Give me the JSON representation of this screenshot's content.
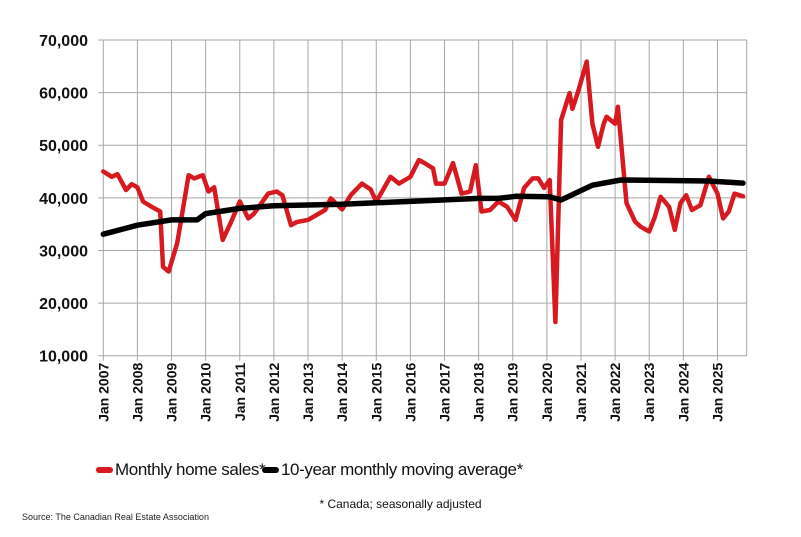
{
  "chart_data": {
    "type": "line",
    "title": "",
    "xlabel": "",
    "ylabel": "",
    "ylim": [
      10000,
      70000
    ],
    "yticks": [
      "10,000",
      "20,000",
      "30,000",
      "40,000",
      "50,000",
      "60,000",
      "70,000"
    ],
    "ytick_values": [
      10000,
      20000,
      30000,
      40000,
      50000,
      60000,
      70000
    ],
    "xlim": [
      "2007-01",
      "2025-11"
    ],
    "xticks": [
      "Jan 2007",
      "Jan 2008",
      "Jan 2009",
      "Jan 2010",
      "Jan 2011",
      "Jan 2012",
      "Jan 2013",
      "Jan 2014",
      "Jan 2015",
      "Jan 2016",
      "Jan 2017",
      "Jan 2018",
      "Jan 2019",
      "Jan 2020",
      "Jan 2021",
      "Jan 2022",
      "Jan 2023",
      "Jan 2024",
      "Jan 2025"
    ],
    "grid": true,
    "legend_position": "bottom",
    "series": [
      {
        "name": "Monthly home sales*",
        "color": "#d71920",
        "points": [
          [
            "2007-01",
            45000
          ],
          [
            "2007-04",
            44000
          ],
          [
            "2007-06",
            44500
          ],
          [
            "2007-09",
            41500
          ],
          [
            "2007-11",
            42600
          ],
          [
            "2008-01",
            42000
          ],
          [
            "2008-03",
            39300
          ],
          [
            "2008-06",
            38300
          ],
          [
            "2008-09",
            37400
          ],
          [
            "2008-10",
            26900
          ],
          [
            "2008-12",
            26000
          ],
          [
            "2009-03",
            31400
          ],
          [
            "2009-07",
            44300
          ],
          [
            "2009-09",
            43700
          ],
          [
            "2009-12",
            44300
          ],
          [
            "2010-02",
            41200
          ],
          [
            "2010-04",
            42000
          ],
          [
            "2010-07",
            32000
          ],
          [
            "2010-10",
            35500
          ],
          [
            "2011-01",
            39300
          ],
          [
            "2011-04",
            36100
          ],
          [
            "2011-06",
            37000
          ],
          [
            "2011-11",
            40800
          ],
          [
            "2012-02",
            41200
          ],
          [
            "2012-04",
            40500
          ],
          [
            "2012-07",
            34800
          ],
          [
            "2012-09",
            35400
          ],
          [
            "2013-01",
            35800
          ],
          [
            "2013-07",
            37700
          ],
          [
            "2013-09",
            39900
          ],
          [
            "2014-01",
            37800
          ],
          [
            "2014-04",
            40500
          ],
          [
            "2014-08",
            42700
          ],
          [
            "2014-11",
            41600
          ],
          [
            "2015-01",
            39300
          ],
          [
            "2015-06",
            44000
          ],
          [
            "2015-09",
            42700
          ],
          [
            "2016-01",
            44000
          ],
          [
            "2016-04",
            47200
          ],
          [
            "2016-06",
            46600
          ],
          [
            "2016-09",
            45600
          ],
          [
            "2016-10",
            42700
          ],
          [
            "2017-01",
            42700
          ],
          [
            "2017-04",
            46600
          ],
          [
            "2017-07",
            40800
          ],
          [
            "2017-10",
            41200
          ],
          [
            "2017-12",
            46200
          ],
          [
            "2018-02",
            37400
          ],
          [
            "2018-05",
            37700
          ],
          [
            "2018-08",
            39300
          ],
          [
            "2018-11",
            38300
          ],
          [
            "2019-02",
            35800
          ],
          [
            "2019-05",
            41900
          ],
          [
            "2019-08",
            43700
          ],
          [
            "2019-10",
            43700
          ],
          [
            "2019-12",
            41900
          ],
          [
            "2020-02",
            43400
          ],
          [
            "2020-04",
            16400
          ],
          [
            "2020-06",
            54800
          ],
          [
            "2020-09",
            59900
          ],
          [
            "2020-10",
            56900
          ],
          [
            "2020-12",
            60200
          ],
          [
            "2021-03",
            65900
          ],
          [
            "2021-05",
            54100
          ],
          [
            "2021-07",
            49700
          ],
          [
            "2021-09",
            54100
          ],
          [
            "2021-10",
            55400
          ],
          [
            "2022-01",
            54100
          ],
          [
            "2022-02",
            57300
          ],
          [
            "2022-05",
            39000
          ],
          [
            "2022-08",
            35500
          ],
          [
            "2022-10",
            34500
          ],
          [
            "2023-01",
            33600
          ],
          [
            "2023-03",
            36400
          ],
          [
            "2023-05",
            40200
          ],
          [
            "2023-08",
            38300
          ],
          [
            "2023-10",
            33900
          ],
          [
            "2023-12",
            39000
          ],
          [
            "2024-02",
            40500
          ],
          [
            "2024-04",
            37700
          ],
          [
            "2024-07",
            38600
          ],
          [
            "2024-10",
            44000
          ],
          [
            "2025-01",
            40800
          ],
          [
            "2025-03",
            36100
          ],
          [
            "2025-05",
            37400
          ],
          [
            "2025-07",
            40800
          ],
          [
            "2025-10",
            40300
          ]
        ]
      },
      {
        "name": "10-year monthly moving average*",
        "color": "#000000",
        "points": [
          [
            "2007-01",
            33100
          ],
          [
            "2008-01",
            34800
          ],
          [
            "2009-01",
            35800
          ],
          [
            "2009-10",
            35800
          ],
          [
            "2010-01",
            37000
          ],
          [
            "2011-01",
            38000
          ],
          [
            "2012-01",
            38500
          ],
          [
            "2014-01",
            38800
          ],
          [
            "2016-04",
            39400
          ],
          [
            "2018-01",
            39900
          ],
          [
            "2018-08",
            39900
          ],
          [
            "2019-02",
            40300
          ],
          [
            "2020-02",
            40200
          ],
          [
            "2020-06",
            39600
          ],
          [
            "2021-05",
            42400
          ],
          [
            "2022-03",
            43400
          ],
          [
            "2023-07",
            43300
          ],
          [
            "2024-10",
            43200
          ],
          [
            "2025-10",
            42800
          ]
        ]
      }
    ]
  },
  "legend": {
    "items": [
      "Monthly home sales*",
      "10-year monthly moving average*"
    ]
  },
  "footnote": "* Canada; seasonally adjusted",
  "source": "Source: The Canadian Real Estate Association"
}
